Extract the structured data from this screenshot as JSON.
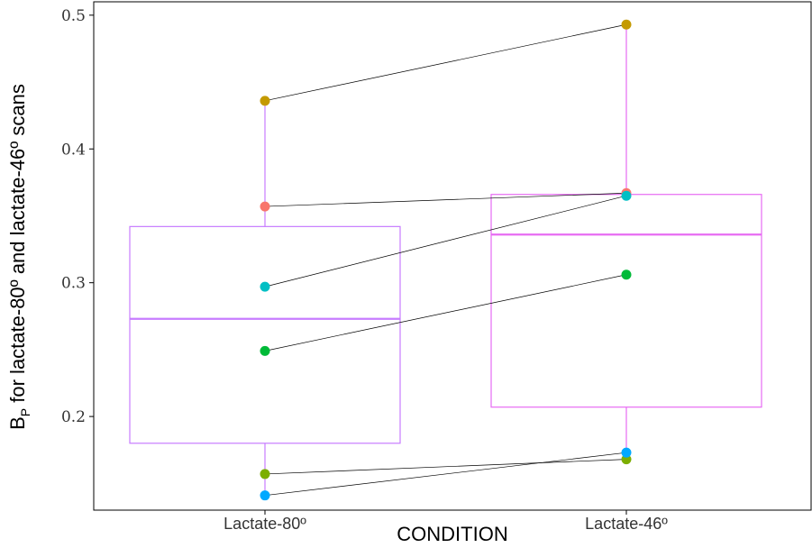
{
  "chart_data": {
    "type": "box",
    "xlabel": "CONDITION",
    "ylabel": {
      "prefix": "B",
      "subscript": "P",
      "rest": " for lactate-80º and lactate-46º scans"
    },
    "ylim": [
      0.13,
      0.51
    ],
    "yticks": [
      0.2,
      0.3,
      0.4,
      0.5
    ],
    "grid": false,
    "categories": [
      "Lactate-80º",
      "Lactate-46º"
    ],
    "boxes": [
      {
        "category": "Lactate-80º",
        "q1": 0.18,
        "median": 0.273,
        "q3": 0.342,
        "whisker_low": 0.141,
        "whisker_high": 0.436,
        "color": "#c77cff"
      },
      {
        "category": "Lactate-46º",
        "q1": 0.207,
        "median": 0.336,
        "q3": 0.366,
        "whisker_low": 0.168,
        "whisker_high": 0.493,
        "color": "#e76bf3"
      }
    ],
    "subjects": [
      {
        "color": "#c49a00",
        "values": [
          0.436,
          0.493
        ]
      },
      {
        "color": "#f8766d",
        "values": [
          0.357,
          0.367
        ]
      },
      {
        "color": "#00bfc4",
        "values": [
          0.297,
          0.365
        ]
      },
      {
        "color": "#00ba38",
        "values": [
          0.249,
          0.306
        ]
      },
      {
        "color": "#7cae00",
        "values": [
          0.157,
          0.168
        ]
      },
      {
        "color": "#00a9ff",
        "values": [
          0.141,
          0.173
        ]
      }
    ]
  }
}
